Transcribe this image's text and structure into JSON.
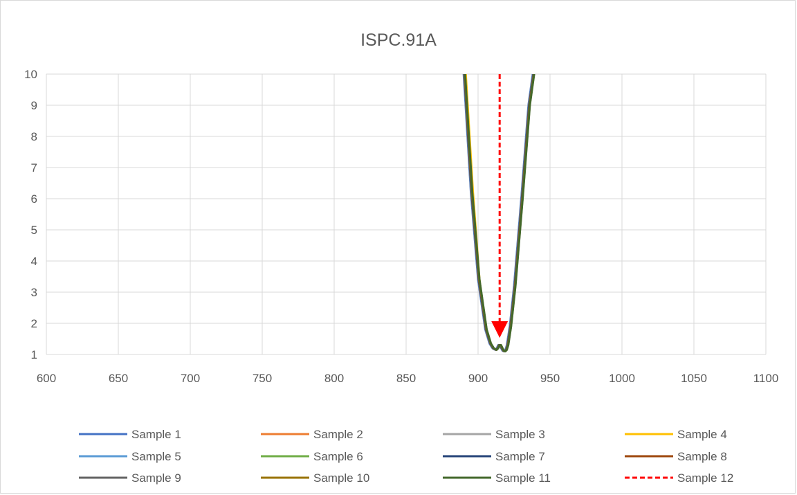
{
  "chart_data": {
    "type": "line",
    "title": "ISPC.91A",
    "xlabel": "",
    "ylabel": "",
    "xlim": [
      600,
      1100
    ],
    "ylim": [
      1,
      10
    ],
    "xticks": [
      600,
      650,
      700,
      750,
      800,
      850,
      900,
      950,
      1000,
      1050,
      1100
    ],
    "yticks": [
      1,
      2,
      3,
      4,
      5,
      6,
      7,
      8,
      9,
      10
    ],
    "grid": true,
    "legend_position": "bottom",
    "series": [
      {
        "name": "Sample 1",
        "color": "#4472C4",
        "dash": false,
        "x": [
          890,
          895,
          900,
          905,
          908,
          910,
          912,
          913,
          914,
          915,
          916,
          917,
          918,
          919,
          920,
          922,
          925,
          930,
          935,
          938
        ],
        "y": [
          10,
          6.2,
          3.4,
          1.8,
          1.35,
          1.2,
          1.15,
          1.2,
          1.3,
          1.3,
          1.2,
          1.12,
          1.1,
          1.15,
          1.3,
          1.9,
          3.2,
          6.0,
          9.0,
          10
        ]
      },
      {
        "name": "Sample 2",
        "color": "#ED7D31",
        "dash": false,
        "x": [
          890.5,
          895.5,
          900.5,
          905.5,
          908.5,
          910.5,
          912.5,
          913.5,
          914.5,
          915.5,
          916.5,
          917.5,
          918.5,
          919.5,
          920.5,
          922.5,
          925.5,
          930.5,
          935.5,
          938.5
        ],
        "y": [
          10,
          6.2,
          3.4,
          1.8,
          1.35,
          1.2,
          1.15,
          1.2,
          1.3,
          1.3,
          1.2,
          1.12,
          1.1,
          1.15,
          1.3,
          1.9,
          3.2,
          6.0,
          9.0,
          10
        ]
      },
      {
        "name": "Sample 3",
        "color": "#A5A5A5",
        "dash": false,
        "x": [
          890.2,
          895.2,
          900.2,
          905.2,
          908.2,
          910.2,
          912.2,
          913.2,
          914.2,
          915.2,
          916.2,
          917.2,
          918.2,
          919.2,
          920.2,
          922.2,
          925.2,
          930.2,
          935.2,
          938.2
        ],
        "y": [
          10,
          6.2,
          3.4,
          1.8,
          1.35,
          1.2,
          1.15,
          1.2,
          1.3,
          1.3,
          1.2,
          1.12,
          1.1,
          1.15,
          1.3,
          1.9,
          3.2,
          6.0,
          9.0,
          10
        ]
      },
      {
        "name": "Sample 4",
        "color": "#FFC000",
        "dash": false,
        "x": [
          891.5,
          896.5,
          901,
          905.5,
          908.5,
          910.5,
          912.5,
          913.5,
          914.5,
          915.5,
          916.5,
          917.5,
          918.5,
          919.5,
          920.5,
          922.5,
          925.5,
          930.5,
          935.5,
          938.5
        ],
        "y": [
          10,
          6.2,
          3.4,
          1.8,
          1.35,
          1.2,
          1.15,
          1.2,
          1.3,
          1.3,
          1.2,
          1.12,
          1.1,
          1.15,
          1.3,
          1.9,
          3.2,
          6.0,
          9.0,
          10
        ]
      },
      {
        "name": "Sample 5",
        "color": "#5B9BD5",
        "dash": false,
        "x": [
          890.3,
          895.3,
          900.3,
          905.3,
          908.3,
          910.3,
          912.3,
          913.3,
          914.3,
          915.3,
          916.3,
          917.3,
          918.3,
          919.3,
          920.3,
          922.3,
          925.3,
          930.3,
          935.3,
          938.3
        ],
        "y": [
          10,
          6.2,
          3.4,
          1.8,
          1.35,
          1.2,
          1.15,
          1.2,
          1.3,
          1.3,
          1.2,
          1.12,
          1.1,
          1.15,
          1.3,
          1.9,
          3.2,
          6.0,
          9.0,
          10
        ]
      },
      {
        "name": "Sample 6",
        "color": "#70AD47",
        "dash": false,
        "x": [
          890.8,
          895.8,
          900.8,
          905.8,
          908.8,
          910.8,
          912.8,
          913.8,
          914.8,
          915.8,
          916.8,
          917.8,
          918.8,
          919.8,
          920.8,
          922.8,
          925.8,
          930.8,
          935.8,
          938.8
        ],
        "y": [
          10,
          6.2,
          3.4,
          1.8,
          1.35,
          1.2,
          1.15,
          1.2,
          1.3,
          1.3,
          1.2,
          1.12,
          1.1,
          1.15,
          1.3,
          1.9,
          3.2,
          6.0,
          9.0,
          10
        ]
      },
      {
        "name": "Sample 7",
        "color": "#264478",
        "dash": false,
        "x": [
          890.4,
          895.4,
          900.4,
          905.4,
          908.4,
          910.4,
          912.4,
          913.4,
          914.4,
          915.4,
          916.4,
          917.4,
          918.4,
          919.4,
          920.4,
          922.4,
          925.4,
          930.4,
          935.4,
          938.4
        ],
        "y": [
          10,
          6.2,
          3.4,
          1.8,
          1.35,
          1.2,
          1.15,
          1.2,
          1.3,
          1.3,
          1.2,
          1.12,
          1.1,
          1.15,
          1.3,
          1.9,
          3.2,
          6.0,
          9.0,
          10
        ]
      },
      {
        "name": "Sample 8",
        "color": "#9E480E",
        "dash": false,
        "x": [
          890.6,
          895.6,
          900.6,
          905.6,
          908.6,
          910.6,
          912.6,
          913.6,
          914.6,
          915.6,
          916.6,
          917.6,
          918.6,
          919.6,
          920.6,
          922.6,
          925.6,
          930.6,
          935.6,
          938.6
        ],
        "y": [
          10,
          6.2,
          3.4,
          1.8,
          1.35,
          1.2,
          1.15,
          1.2,
          1.3,
          1.3,
          1.2,
          1.12,
          1.1,
          1.15,
          1.3,
          1.9,
          3.2,
          6.0,
          9.0,
          10
        ]
      },
      {
        "name": "Sample 9",
        "color": "#636363",
        "dash": false,
        "x": [
          890.7,
          895.7,
          900.7,
          905.7,
          908.7,
          910.7,
          912.7,
          913.7,
          914.7,
          915.7,
          916.7,
          917.7,
          918.7,
          919.7,
          920.7,
          922.7,
          925.7,
          930.7,
          935.7,
          938.7
        ],
        "y": [
          10,
          6.2,
          3.4,
          1.8,
          1.35,
          1.2,
          1.15,
          1.2,
          1.3,
          1.3,
          1.2,
          1.12,
          1.1,
          1.15,
          1.3,
          1.9,
          3.2,
          6.0,
          9.0,
          10
        ]
      },
      {
        "name": "Sample 10",
        "color": "#997300",
        "dash": false,
        "x": [
          890.9,
          895.9,
          900.9,
          905.9,
          908.9,
          910.9,
          912.9,
          913.9,
          914.9,
          915.9,
          916.9,
          917.9,
          918.9,
          919.9,
          920.9,
          922.9,
          925.9,
          930.9,
          935.9,
          938.9
        ],
        "y": [
          10,
          6.2,
          3.4,
          1.8,
          1.35,
          1.2,
          1.15,
          1.2,
          1.3,
          1.3,
          1.2,
          1.12,
          1.1,
          1.15,
          1.3,
          1.9,
          3.2,
          6.0,
          9.0,
          10
        ]
      },
      {
        "name": "Sample 11",
        "color": "#43682B",
        "dash": false,
        "x": [
          891,
          896,
          901,
          906,
          909,
          911,
          913,
          914,
          915,
          916,
          917,
          918,
          919,
          920,
          921,
          923,
          926,
          931,
          936,
          939
        ],
        "y": [
          10,
          6.2,
          3.4,
          1.8,
          1.35,
          1.2,
          1.15,
          1.2,
          1.3,
          1.3,
          1.2,
          1.12,
          1.1,
          1.15,
          1.3,
          1.9,
          3.2,
          6.0,
          9.0,
          10
        ]
      },
      {
        "name": "Sample 12",
        "color": "#FF0000",
        "dash": true,
        "x": [
          915,
          915
        ],
        "y": [
          10,
          1.8
        ]
      }
    ]
  }
}
